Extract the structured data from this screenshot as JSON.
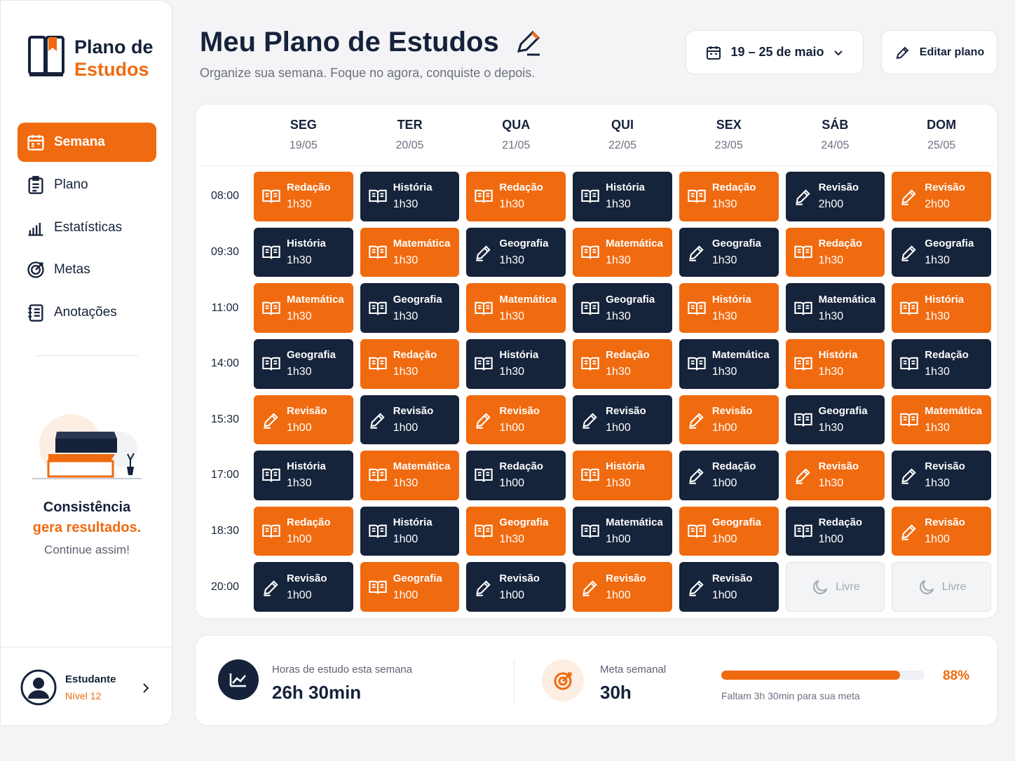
{
  "sidebar": {
    "logo": {
      "line1": "Plano de",
      "line2": "Estudos"
    },
    "nav": [
      "Semana",
      "Plano",
      "Estatísticas",
      "Metas",
      "Anotações"
    ],
    "motto": {
      "line1": "Consistência",
      "line2": "gera resultados.",
      "line3": "Continue assim!"
    },
    "user": {
      "name": "Estudante",
      "level": "Nível 12"
    }
  },
  "header": {
    "title": "Meu Plano de Estudos",
    "subtitle": "Organize sua semana. Foque no agora, conquiste o depois.",
    "date_range": "19 – 25 de maio",
    "edit_button": "Editar plano"
  },
  "schedule": {
    "days": [
      {
        "name": "SEG",
        "date": "19/05"
      },
      {
        "name": "TER",
        "date": "20/05"
      },
      {
        "name": "QUA",
        "date": "21/05"
      },
      {
        "name": "QUI",
        "date": "22/05"
      },
      {
        "name": "SEX",
        "date": "23/05"
      },
      {
        "name": "SÁB",
        "date": "24/05"
      },
      {
        "name": "DOM",
        "date": "25/05"
      }
    ],
    "rows": [
      {
        "time": "08:00",
        "cells": [
          {
            "subject": "Redação",
            "duration": "1h30",
            "style": "orange",
            "icon": "book"
          },
          {
            "subject": "História",
            "duration": "1h30",
            "style": "dark",
            "icon": "book"
          },
          {
            "subject": "Redação",
            "duration": "1h30",
            "style": "orange",
            "icon": "book"
          },
          {
            "subject": "História",
            "duration": "1h30",
            "style": "dark",
            "icon": "book"
          },
          {
            "subject": "Redação",
            "duration": "1h30",
            "style": "orange",
            "icon": "book"
          },
          {
            "subject": "Revisão",
            "duration": "2h00",
            "style": "dark",
            "icon": "pen"
          },
          {
            "subject": "Revisão",
            "duration": "2h00",
            "style": "orange",
            "icon": "pen"
          }
        ]
      },
      {
        "time": "09:30",
        "cells": [
          {
            "subject": "História",
            "duration": "1h30",
            "style": "dark",
            "icon": "book"
          },
          {
            "subject": "Matemática",
            "duration": "1h30",
            "style": "orange",
            "icon": "book"
          },
          {
            "subject": "Geografia",
            "duration": "1h30",
            "style": "dark",
            "icon": "pen"
          },
          {
            "subject": "Matemática",
            "duration": "1h30",
            "style": "orange",
            "icon": "book"
          },
          {
            "subject": "Geografia",
            "duration": "1h30",
            "style": "dark",
            "icon": "pen"
          },
          {
            "subject": "Redação",
            "duration": "1h30",
            "style": "orange",
            "icon": "book"
          },
          {
            "subject": "Geografia",
            "duration": "1h30",
            "style": "dark",
            "icon": "pen"
          }
        ]
      },
      {
        "time": "11:00",
        "cells": [
          {
            "subject": "Matemática",
            "duration": "1h30",
            "style": "orange",
            "icon": "book"
          },
          {
            "subject": "Geografia",
            "duration": "1h30",
            "style": "dark",
            "icon": "book"
          },
          {
            "subject": "Matemática",
            "duration": "1h30",
            "style": "orange",
            "icon": "book"
          },
          {
            "subject": "Geografia",
            "duration": "1h30",
            "style": "dark",
            "icon": "book"
          },
          {
            "subject": "História",
            "duration": "1h30",
            "style": "orange",
            "icon": "book"
          },
          {
            "subject": "Matemática",
            "duration": "1h30",
            "style": "dark",
            "icon": "book"
          },
          {
            "subject": "História",
            "duration": "1h30",
            "style": "orange",
            "icon": "book"
          }
        ]
      },
      {
        "time": "14:00",
        "cells": [
          {
            "subject": "Geografia",
            "duration": "1h30",
            "style": "dark",
            "icon": "book"
          },
          {
            "subject": "Redação",
            "duration": "1h30",
            "style": "orange",
            "icon": "book"
          },
          {
            "subject": "História",
            "duration": "1h30",
            "style": "dark",
            "icon": "book"
          },
          {
            "subject": "Redação",
            "duration": "1h30",
            "style": "orange",
            "icon": "book"
          },
          {
            "subject": "Matemática",
            "duration": "1h30",
            "style": "dark",
            "icon": "book"
          },
          {
            "subject": "História",
            "duration": "1h30",
            "style": "orange",
            "icon": "book"
          },
          {
            "subject": "Redação",
            "duration": "1h30",
            "style": "dark",
            "icon": "book"
          }
        ]
      },
      {
        "time": "15:30",
        "cells": [
          {
            "subject": "Revisão",
            "duration": "1h00",
            "style": "orange",
            "icon": "pen"
          },
          {
            "subject": "Revisão",
            "duration": "1h00",
            "style": "dark",
            "icon": "pen"
          },
          {
            "subject": "Revisão",
            "duration": "1h00",
            "style": "orange",
            "icon": "pen"
          },
          {
            "subject": "Revisão",
            "duration": "1h00",
            "style": "dark",
            "icon": "pen"
          },
          {
            "subject": "Revisão",
            "duration": "1h00",
            "style": "orange",
            "icon": "pen"
          },
          {
            "subject": "Geografia",
            "duration": "1h30",
            "style": "dark",
            "icon": "book"
          },
          {
            "subject": "Matemática",
            "duration": "1h30",
            "style": "orange",
            "icon": "book"
          }
        ]
      },
      {
        "time": "17:00",
        "cells": [
          {
            "subject": "História",
            "duration": "1h30",
            "style": "dark",
            "icon": "book"
          },
          {
            "subject": "Matemática",
            "duration": "1h30",
            "style": "orange",
            "icon": "book"
          },
          {
            "subject": "Redação",
            "duration": "1h00",
            "style": "dark",
            "icon": "book"
          },
          {
            "subject": "História",
            "duration": "1h30",
            "style": "orange",
            "icon": "book"
          },
          {
            "subject": "Redação",
            "duration": "1h00",
            "style": "dark",
            "icon": "pen"
          },
          {
            "subject": "Revisão",
            "duration": "1h30",
            "style": "orange",
            "icon": "pen"
          },
          {
            "subject": "Revisão",
            "duration": "1h30",
            "style": "dark",
            "icon": "pen"
          }
        ]
      },
      {
        "time": "18:30",
        "cells": [
          {
            "subject": "Redação",
            "duration": "1h00",
            "style": "orange",
            "icon": "book"
          },
          {
            "subject": "História",
            "duration": "1h00",
            "style": "dark",
            "icon": "book"
          },
          {
            "subject": "Geografia",
            "duration": "1h30",
            "style": "orange",
            "icon": "book"
          },
          {
            "subject": "Matemática",
            "duration": "1h00",
            "style": "dark",
            "icon": "book"
          },
          {
            "subject": "Geografia",
            "duration": "1h00",
            "style": "orange",
            "icon": "book"
          },
          {
            "subject": "Redação",
            "duration": "1h00",
            "style": "dark",
            "icon": "book"
          },
          {
            "subject": "Revisão",
            "duration": "1h00",
            "style": "orange",
            "icon": "pen"
          }
        ]
      },
      {
        "time": "20:00",
        "cells": [
          {
            "subject": "Revisão",
            "duration": "1h00",
            "style": "dark",
            "icon": "pen"
          },
          {
            "subject": "Geografia",
            "duration": "1h00",
            "style": "orange",
            "icon": "book"
          },
          {
            "subject": "Revisão",
            "duration": "1h00",
            "style": "dark",
            "icon": "pen"
          },
          {
            "subject": "Revisão",
            "duration": "1h00",
            "style": "orange",
            "icon": "pen"
          },
          {
            "subject": "Revisão",
            "duration": "1h00",
            "style": "dark",
            "icon": "pen"
          },
          {
            "subject": "Livre",
            "style": "free",
            "icon": "moon"
          },
          {
            "subject": "Livre",
            "style": "free",
            "icon": "moon"
          }
        ]
      }
    ]
  },
  "stats": {
    "hours": {
      "label": "Horas de estudo esta semana",
      "value": "26h 30min"
    },
    "goal": {
      "label": "Meta semanal",
      "value": "30h"
    },
    "progress": {
      "value": 88,
      "label": "88%",
      "note": "Faltam 3h 30min para sua meta"
    }
  }
}
